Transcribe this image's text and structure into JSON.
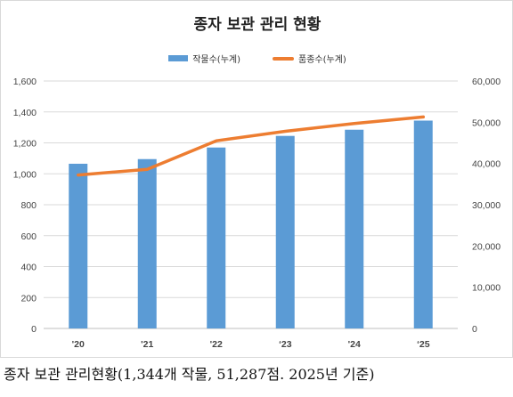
{
  "chart_data": {
    "type": "bar",
    "title": "종자 보관 관리 현황",
    "categories": [
      "'20",
      "'21",
      "'22",
      "‘23",
      "'24",
      "‘25"
    ],
    "series": [
      {
        "name": "작물수(누계)",
        "chart": "bar",
        "axis": "left",
        "color": "#5b9bd5",
        "values": [
          1065,
          1095,
          1170,
          1245,
          1285,
          1344
        ]
      },
      {
        "name": "품종수(누계)",
        "chart": "line",
        "axis": "right",
        "color": "#ed7d31",
        "values": [
          37200,
          38600,
          45500,
          47800,
          49700,
          51287
        ]
      }
    ],
    "y_left": {
      "min": 0,
      "max": 1600,
      "step": 200,
      "ticks": [
        "0",
        "200",
        "400",
        "600",
        "800",
        "1,000",
        "1,200",
        "1,400",
        "1,600"
      ]
    },
    "y_right": {
      "min": 0,
      "max": 60000,
      "step": 10000,
      "ticks": [
        "0",
        "10,000",
        "20,000",
        "30,000",
        "40,000",
        "50,000",
        "60,000"
      ]
    },
    "grid": true,
    "legend_position": "top"
  },
  "caption": "종자 보관 관리현황(1,344개 작물, 51,287점. 2025년 기준)"
}
